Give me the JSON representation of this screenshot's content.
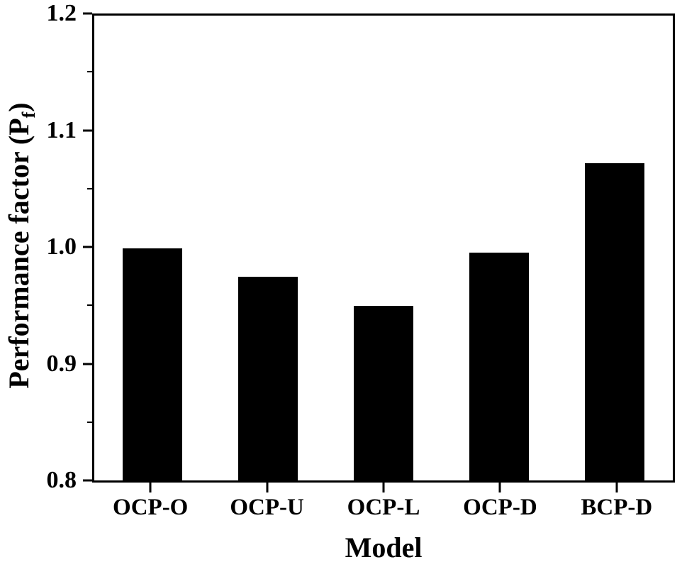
{
  "chart_data": {
    "type": "bar",
    "title": "",
    "categories": [
      "OCP-O",
      "OCP-U",
      "OCP-L",
      "OCP-D",
      "BCP-D"
    ],
    "values": [
      1.0,
      0.975,
      0.95,
      0.996,
      1.073
    ],
    "xlabel": "Model",
    "ylabel": {
      "prefix": "Performance factor (P",
      "subscript": "f",
      "suffix": ")"
    },
    "ylim": [
      0.8,
      1.2
    ],
    "y_major_ticks": [
      1.2,
      1.1,
      1.0,
      0.9,
      0.8
    ],
    "y_major_tick_labels": [
      "1.2",
      "1.1",
      "1.0",
      "0.9",
      "0.8"
    ],
    "y_minor_ticks": [
      1.15,
      1.05,
      0.95,
      0.85
    ],
    "bar_color": "#000000",
    "axis_color": "#000000",
    "background_color": "#ffffff",
    "grid": false,
    "legend": false
  }
}
